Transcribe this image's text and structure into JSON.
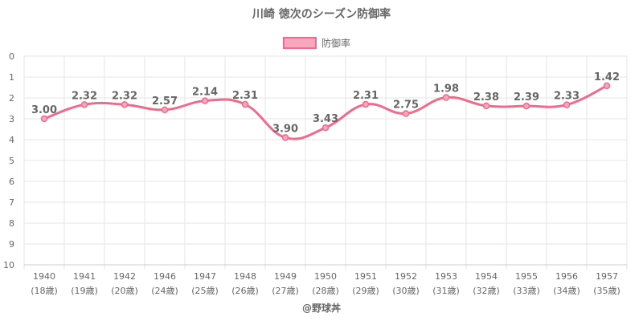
{
  "chart_data": {
    "type": "line",
    "title": "川崎 徳次のシーズン防御率",
    "categories": [
      "1940",
      "1941",
      "1942",
      "1946",
      "1947",
      "1948",
      "1949",
      "1950",
      "1951",
      "1952",
      "1953",
      "1954",
      "1955",
      "1956",
      "1957"
    ],
    "ages": [
      "(18歳)",
      "(19歳)",
      "(20歳)",
      "(24歳)",
      "(25歳)",
      "(26歳)",
      "(27歳)",
      "(28歳)",
      "(29歳)",
      "(30歳)",
      "(31歳)",
      "(32歳)",
      "(33歳)",
      "(34歳)",
      "(35歳)"
    ],
    "series": [
      {
        "name": "防御率",
        "values": [
          3.0,
          2.32,
          2.32,
          2.57,
          2.14,
          2.31,
          3.9,
          3.43,
          2.31,
          2.75,
          1.98,
          2.38,
          2.39,
          2.33,
          1.42
        ]
      }
    ],
    "ylim": [
      0,
      10
    ],
    "y_reversed": true,
    "y_ticks": [
      "0",
      "1",
      "2",
      "3",
      "4",
      "5",
      "6",
      "7",
      "8",
      "9",
      "10"
    ],
    "grid": true,
    "legend_position": "top",
    "line_color": "#f06a8c",
    "fill_color": "#f7a8bc"
  },
  "credit": "@野球丼"
}
